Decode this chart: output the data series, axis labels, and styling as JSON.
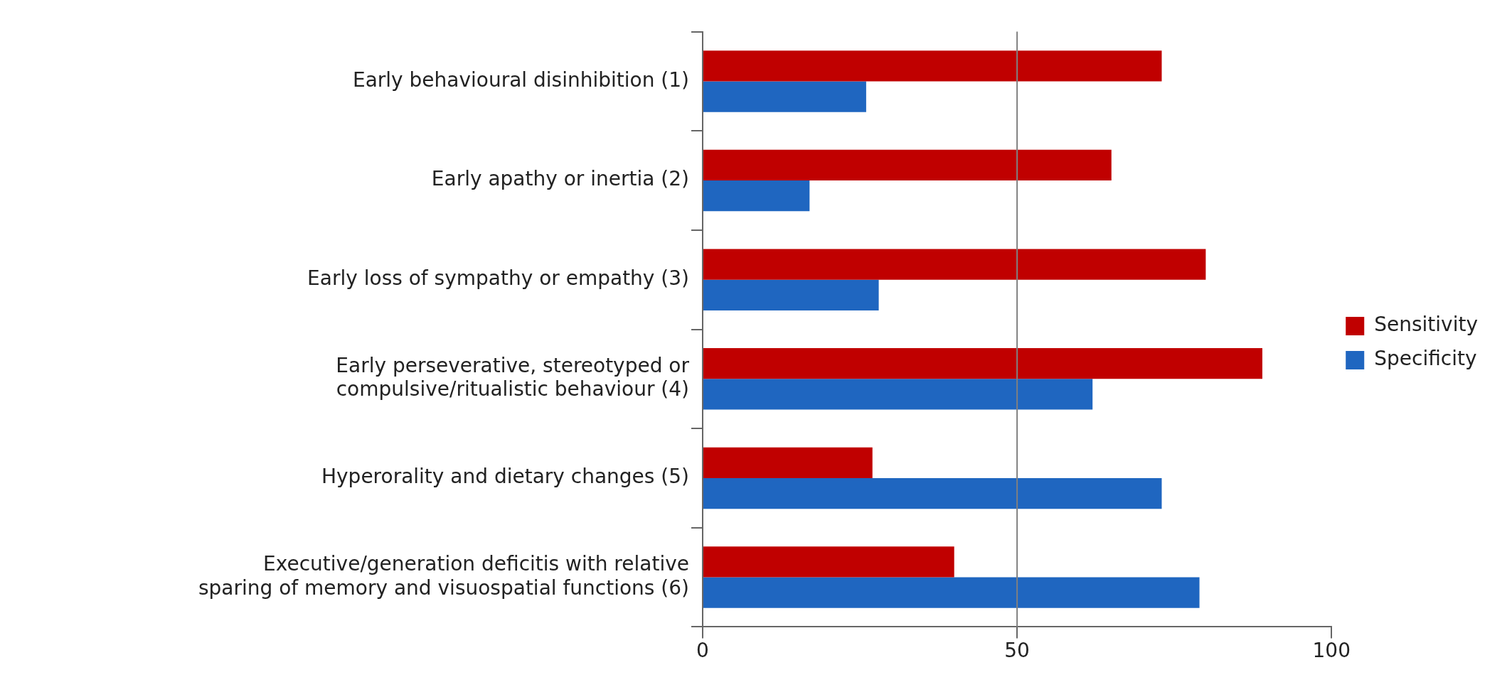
{
  "chart_data": {
    "type": "bar",
    "orientation": "horizontal",
    "categories": [
      "Early behavioural disinhibition (1)",
      "Early apathy or inertia (2)",
      "Early loss of sympathy or empathy (3)",
      "Early perseverative, stereotyped or compulsive/ritualistic behaviour (4)",
      "Hyperorality and dietary changes (5)",
      "Executive/generation deficitis with relative sparing of memory and visuospatial functions (6)"
    ],
    "series": [
      {
        "name": "Sensitivity",
        "color": "#c00000",
        "values": [
          73,
          65,
          80,
          89,
          27,
          40
        ]
      },
      {
        "name": "Specificity",
        "color": "#1f66c0",
        "values": [
          26,
          17,
          28,
          62,
          73,
          79
        ]
      }
    ],
    "xlim": [
      0,
      100
    ],
    "xticks": [
      0,
      50,
      100
    ],
    "ref_lines": [
      {
        "axis": "x",
        "value": 50,
        "color": "#808080"
      }
    ],
    "grid": false,
    "legend": "right"
  }
}
